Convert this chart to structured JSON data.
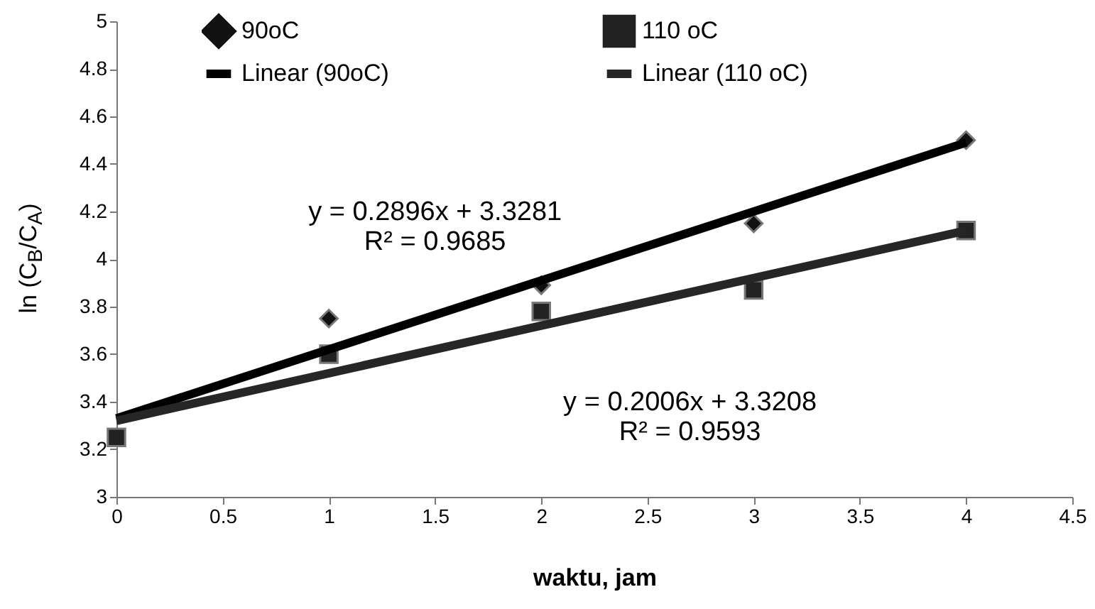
{
  "chart_data": {
    "type": "scatter",
    "xlabel": "waktu, jam",
    "ylabel": "ln (C$_{B}$/C$_{A}$)",
    "xlim": [
      0,
      4.5
    ],
    "xticks": [
      0,
      0.5,
      1,
      1.5,
      2,
      2.5,
      3,
      3.5,
      4,
      4.5
    ],
    "ylim": [
      3,
      5
    ],
    "yticks": [
      3,
      3.2,
      3.4,
      3.6,
      3.8,
      4,
      4.2,
      4.4,
      4.6,
      4.8,
      5
    ],
    "grid": false,
    "legend": "top",
    "series": [
      {
        "name": "90oC",
        "color": "#111111",
        "marker": "diamond",
        "x": [
          1,
          2,
          3,
          4
        ],
        "values": [
          3.75,
          3.89,
          4.15,
          4.5
        ]
      },
      {
        "name": "110 oC",
        "color": "#222222",
        "marker": "square",
        "x": [
          0,
          1,
          2,
          3,
          4
        ],
        "values": [
          3.25,
          3.6,
          3.78,
          3.87,
          4.12
        ]
      },
      {
        "name": "Linear (90oC)",
        "type": "line",
        "color": "#000000",
        "x": [
          0,
          4
        ],
        "values": [
          3.33,
          4.49
        ]
      },
      {
        "name": "Linear (110 oC)",
        "type": "line",
        "color": "#262626",
        "x": [
          0,
          4
        ],
        "values": [
          3.32,
          4.12
        ]
      }
    ],
    "annotations": [
      "y = 0.2896x + 3.3281\nR² = 0.9685",
      "y = 0.2006x + 3.3208\nR² = 0.9593"
    ]
  }
}
